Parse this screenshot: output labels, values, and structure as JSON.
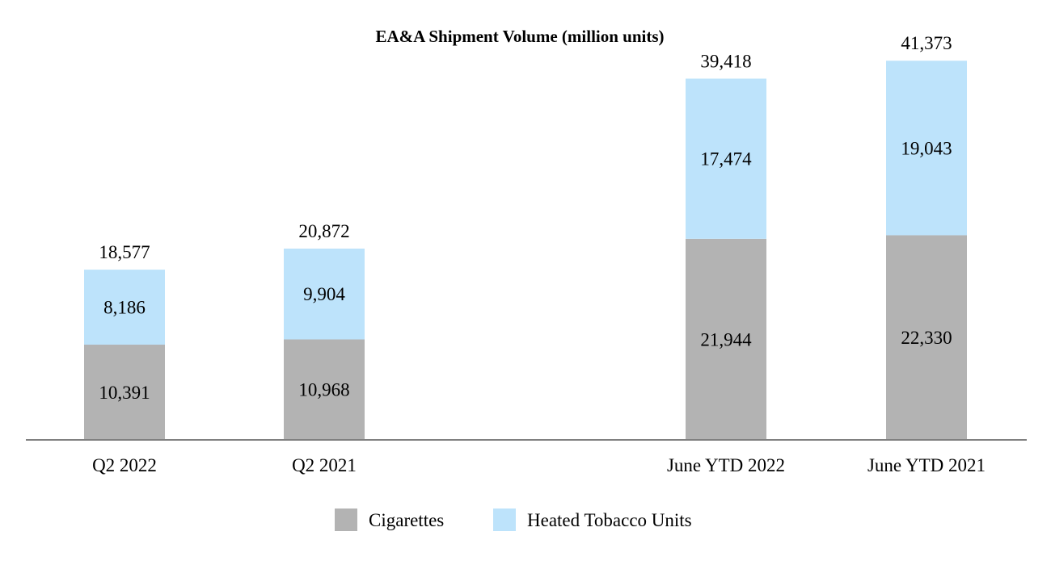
{
  "chart_data": {
    "type": "bar",
    "stacked": true,
    "title": "EA&A Shipment Volume (million units)",
    "xlabel": "",
    "ylabel": "",
    "ylim": [
      0,
      48000
    ],
    "categories": [
      "Q2 2022",
      "Q2 2021",
      "June YTD 2022",
      "June YTD 2021"
    ],
    "series": [
      {
        "name": "Cigarettes",
        "color": "#b3b3b3",
        "values": [
          10391,
          10968,
          21944,
          22330
        ],
        "labels": [
          "10,391",
          "10,968",
          "21,944",
          "22,330"
        ]
      },
      {
        "name": "Heated Tobacco Units",
        "color": "#bde3fb",
        "values": [
          8186,
          9904,
          17474,
          19043
        ],
        "labels": [
          "8,186",
          "9,904",
          "17,474",
          "19,043"
        ]
      }
    ],
    "totals": {
      "values": [
        18577,
        20872,
        39418,
        41373
      ],
      "labels": [
        "18,577",
        "20,872",
        "39,418",
        "41,373"
      ]
    },
    "legend_position": "bottom",
    "grid": false,
    "axis_color": "#808080"
  }
}
